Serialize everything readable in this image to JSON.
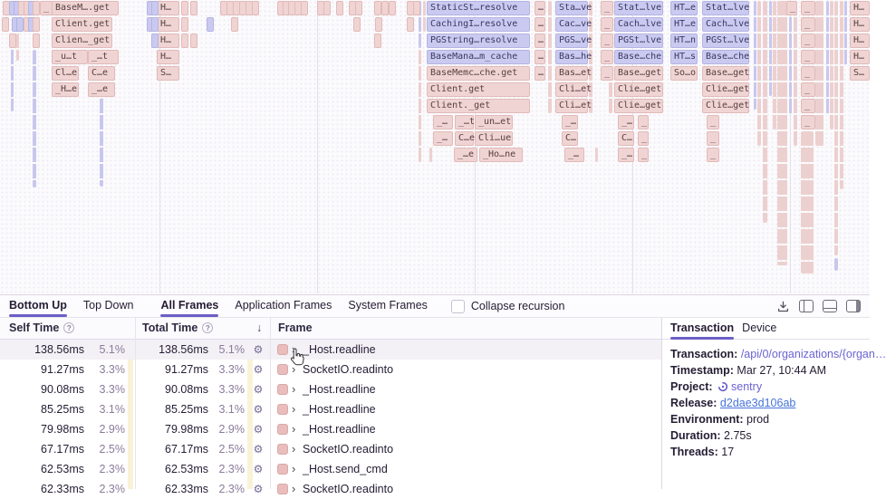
{
  "flame": {
    "gridlines": [
      176,
      350,
      524,
      698,
      872
    ],
    "colors": {
      "pink_bg": "#efd4d3",
      "pink_border": "#e2bab8",
      "blue_bg": "#cacaf1",
      "blue_border": "#b4b4e4"
    },
    "boxes": [
      [
        "_",
        44,
        0,
        12,
        "p"
      ],
      [
        "BaseM….get",
        57,
        0,
        72,
        "p"
      ],
      [
        "Client.get",
        57,
        1,
        65,
        "p"
      ],
      [
        "Clien…_get",
        57,
        2,
        65,
        "p"
      ],
      [
        "_u…t",
        57,
        3,
        38,
        "p"
      ],
      [
        "_…t",
        97,
        3,
        32,
        "p"
      ],
      [
        "Cl…e",
        57,
        4,
        28,
        "p"
      ],
      [
        "C…e",
        97,
        4,
        28,
        "p"
      ],
      [
        "_H…e",
        57,
        5,
        28,
        "p"
      ],
      [
        "_…e",
        97,
        5,
        28,
        "p"
      ],
      [
        "",
        3,
        0,
        4,
        "p"
      ],
      [
        "",
        10,
        0,
        3,
        "b"
      ],
      [
        "",
        15,
        0,
        3,
        "b"
      ],
      [
        "",
        20,
        0,
        4,
        "p"
      ],
      [
        "",
        26,
        0,
        3,
        "p"
      ],
      [
        "",
        31,
        0,
        3,
        "b"
      ],
      [
        "",
        36,
        0,
        5,
        "p"
      ],
      [
        "",
        13,
        1,
        3,
        "b"
      ],
      [
        "",
        18,
        1,
        3,
        "b"
      ],
      [
        "",
        26,
        1,
        3,
        "p"
      ],
      [
        "",
        31,
        1,
        3,
        "b"
      ],
      [
        "",
        36,
        1,
        5,
        "p"
      ],
      [
        "",
        10,
        2,
        3,
        "p"
      ],
      [
        "",
        36,
        2,
        5,
        "p"
      ],
      [
        "",
        2,
        1,
        3,
        "p"
      ],
      [
        "H…",
        173,
        0,
        23,
        "p"
      ],
      [
        "H…",
        173,
        1,
        23,
        "p"
      ],
      [
        "H…",
        173,
        2,
        23,
        "p"
      ],
      [
        "H…",
        173,
        3,
        23,
        "p"
      ],
      [
        "S…",
        173,
        4,
        23,
        "p"
      ],
      [
        "",
        162,
        0,
        3,
        "b"
      ],
      [
        "",
        167,
        0,
        3,
        "b"
      ],
      [
        "",
        162,
        1,
        3,
        "b"
      ],
      [
        "",
        167,
        1,
        3,
        "b"
      ],
      [
        "",
        167,
        2,
        3,
        "b"
      ],
      [
        "",
        200,
        0,
        6,
        "p"
      ],
      [
        "",
        200,
        1,
        6,
        "p"
      ],
      [
        "",
        200,
        2,
        6,
        "p"
      ],
      [
        "",
        210,
        0,
        4,
        "p"
      ],
      [
        "",
        210,
        2,
        4,
        "p"
      ],
      [
        "",
        228,
        1,
        4,
        "b"
      ],
      [
        "",
        243,
        0,
        4,
        "p"
      ],
      [
        "",
        250,
        0,
        4,
        "p"
      ],
      [
        "",
        257,
        0,
        4,
        "p"
      ],
      [
        "",
        264,
        0,
        4,
        "p"
      ],
      [
        "",
        271,
        0,
        4,
        "p"
      ],
      [
        "",
        278,
        0,
        4,
        "p"
      ],
      [
        "",
        306,
        0,
        4,
        "p"
      ],
      [
        "",
        312,
        0,
        4,
        "p"
      ],
      [
        "",
        318,
        0,
        4,
        "p"
      ],
      [
        "",
        325,
        0,
        4,
        "p"
      ],
      [
        "",
        332,
        0,
        4,
        "p"
      ],
      [
        "",
        350,
        0,
        4,
        "p"
      ],
      [
        "",
        357,
        0,
        4,
        "p"
      ],
      [
        "",
        371,
        0,
        4,
        "p"
      ],
      [
        "",
        385,
        0,
        4,
        "p"
      ],
      [
        "",
        392,
        0,
        4,
        "p"
      ],
      [
        "",
        413,
        0,
        4,
        "p"
      ],
      [
        "",
        421,
        0,
        4,
        "p"
      ],
      [
        "",
        429,
        0,
        4,
        "p"
      ],
      [
        "",
        449,
        0,
        4,
        "p"
      ],
      [
        "",
        456,
        0,
        4,
        "p"
      ],
      [
        "",
        255,
        1,
        4,
        "p"
      ],
      [
        "",
        390,
        1,
        5,
        "p"
      ],
      [
        "",
        414,
        1,
        4,
        "p"
      ],
      [
        "",
        449,
        1,
        4,
        "p"
      ],
      [
        "",
        413,
        2,
        4,
        "p"
      ],
      [
        "StaticSt…resolve",
        471,
        0,
        112,
        "b"
      ],
      [
        "CachingI…resolve",
        471,
        1,
        112,
        "b"
      ],
      [
        "PGString…resolve",
        471,
        2,
        112,
        "b"
      ],
      [
        "BaseMana…m_cache",
        471,
        3,
        112,
        "b"
      ],
      [
        "BaseMemc…che.get",
        471,
        4,
        112,
        "p"
      ],
      [
        "Client.get",
        471,
        5,
        112,
        "p"
      ],
      [
        "Client._get",
        471,
        6,
        112,
        "p"
      ],
      [
        "_…",
        478,
        7,
        20,
        "p"
      ],
      [
        "_…t",
        502,
        7,
        19,
        "p"
      ],
      [
        "_un…et",
        524,
        7,
        40,
        "p"
      ],
      [
        "_…",
        478,
        8,
        20,
        "p"
      ],
      [
        "C…e",
        502,
        8,
        19,
        "p"
      ],
      [
        "Cli…ue",
        524,
        8,
        40,
        "p"
      ],
      [
        "_…e",
        501,
        9,
        24,
        "p"
      ],
      [
        "_Ho…ne",
        529,
        9,
        46,
        "p"
      ],
      [
        "…",
        590,
        0,
        10,
        "p"
      ],
      [
        "…",
        590,
        1,
        10,
        "p"
      ],
      [
        "…",
        590,
        2,
        10,
        "p"
      ],
      [
        "…",
        590,
        3,
        10,
        "p"
      ],
      [
        "…",
        590,
        4,
        10,
        "p"
      ],
      [
        "Sta…ve",
        613,
        0,
        34,
        "b"
      ],
      [
        "Cac…ve",
        613,
        1,
        34,
        "b"
      ],
      [
        "PGS…ve",
        613,
        2,
        34,
        "b"
      ],
      [
        "Bas…he",
        613,
        3,
        34,
        "b"
      ],
      [
        "Bas…et",
        613,
        4,
        34,
        "p"
      ],
      [
        "Cli…et",
        613,
        5,
        34,
        "p"
      ],
      [
        "Cli…et",
        613,
        6,
        34,
        "p"
      ],
      [
        "_…",
        620,
        7,
        16,
        "p"
      ],
      [
        "C…",
        620,
        8,
        16,
        "p"
      ],
      [
        "_…",
        623,
        9,
        20,
        "p"
      ],
      [
        "_",
        663,
        0,
        12,
        "p"
      ],
      [
        "_",
        663,
        1,
        12,
        "p"
      ],
      [
        "_",
        663,
        2,
        12,
        "p"
      ],
      [
        "_",
        663,
        3,
        12,
        "p"
      ],
      [
        "_",
        663,
        4,
        12,
        "p"
      ],
      [
        "Stat…lve",
        678,
        0,
        52,
        "b"
      ],
      [
        "Cach…lve",
        678,
        1,
        52,
        "b"
      ],
      [
        "PGSt…lve",
        678,
        2,
        52,
        "b"
      ],
      [
        "Base…che",
        678,
        3,
        52,
        "b"
      ],
      [
        "Base…get",
        678,
        4,
        52,
        "p"
      ],
      [
        "Clie…get",
        678,
        5,
        52,
        "p"
      ],
      [
        "Clie…get",
        678,
        6,
        52,
        "p"
      ],
      [
        "_…",
        682,
        7,
        16,
        "p"
      ],
      [
        "_",
        704,
        7,
        10,
        "p"
      ],
      [
        "C…",
        682,
        8,
        16,
        "p"
      ],
      [
        "_",
        704,
        8,
        10,
        "p"
      ],
      [
        "_…",
        682,
        9,
        16,
        "p"
      ],
      [
        "_",
        704,
        9,
        10,
        "p"
      ],
      [
        "HT…e",
        740,
        0,
        28,
        "b"
      ],
      [
        "HT…e",
        740,
        1,
        28,
        "b"
      ],
      [
        "HT…n",
        740,
        2,
        28,
        "b"
      ],
      [
        "HT…s",
        740,
        3,
        28,
        "b"
      ],
      [
        "So…o",
        740,
        4,
        28,
        "p"
      ],
      [
        "Stat…lve",
        775,
        0,
        50,
        "b"
      ],
      [
        "Cach…lve",
        775,
        1,
        50,
        "b"
      ],
      [
        "PGSt…lve",
        775,
        2,
        50,
        "b"
      ],
      [
        "Base…che",
        775,
        3,
        50,
        "b"
      ],
      [
        "Base…get",
        775,
        4,
        50,
        "p"
      ],
      [
        "Clie…get",
        775,
        5,
        50,
        "p"
      ],
      [
        "Clie…get",
        775,
        6,
        50,
        "p"
      ],
      [
        "_",
        780,
        7,
        12,
        "p"
      ],
      [
        "_",
        780,
        8,
        12,
        "p"
      ],
      [
        "_",
        780,
        9,
        12,
        "p"
      ],
      [
        "_",
        868,
        0,
        10,
        "p"
      ],
      [
        "_",
        884,
        0,
        14,
        "p"
      ],
      [
        "_",
        884,
        1,
        14,
        "p"
      ],
      [
        "_",
        884,
        2,
        14,
        "p"
      ],
      [
        "_",
        884,
        3,
        14,
        "p"
      ],
      [
        "_",
        884,
        4,
        14,
        "p"
      ],
      [
        "_",
        884,
        5,
        14,
        "p"
      ],
      [
        "_",
        884,
        6,
        14,
        "p"
      ],
      [
        "_",
        884,
        7,
        14,
        "p"
      ],
      [
        "H…",
        938,
        0,
        20,
        "p"
      ],
      [
        "H…",
        938,
        1,
        20,
        "p"
      ],
      [
        "H…",
        938,
        2,
        20,
        "p"
      ],
      [
        "H…",
        938,
        3,
        20,
        "p"
      ],
      [
        "S…",
        938,
        4,
        20,
        "p"
      ]
    ],
    "columns": [
      [
        12,
        37,
        3,
        86,
        "b"
      ],
      [
        36,
        55,
        4,
        152,
        "b"
      ],
      [
        110,
        73,
        4,
        133,
        "b"
      ],
      [
        18,
        37,
        3,
        30,
        "p"
      ],
      [
        462,
        1,
        3,
        52,
        "b"
      ],
      [
        462,
        55,
        3,
        124,
        "p"
      ],
      [
        467,
        1,
        3,
        34,
        "p"
      ],
      [
        474,
        163,
        3,
        16,
        "p"
      ],
      [
        605,
        1,
        4,
        124,
        "p"
      ],
      [
        650,
        1,
        4,
        124,
        "p"
      ],
      [
        657,
        163,
        3,
        16,
        "p"
      ],
      [
        672,
        1,
        4,
        124,
        "p"
      ],
      [
        832,
        1,
        3,
        120,
        "b"
      ],
      [
        836,
        1,
        4,
        160,
        "p"
      ],
      [
        842,
        1,
        5,
        245,
        "p"
      ],
      [
        849,
        1,
        3,
        105,
        "b"
      ],
      [
        853,
        1,
        4,
        142,
        "p"
      ],
      [
        858,
        1,
        11,
        292,
        "p"
      ],
      [
        871,
        1,
        3,
        125,
        "b"
      ],
      [
        876,
        1,
        4,
        160,
        "p"
      ],
      [
        884,
        145,
        14,
        157,
        "p"
      ],
      [
        900,
        1,
        9,
        160,
        "p"
      ],
      [
        912,
        1,
        3,
        125,
        "b"
      ],
      [
        916,
        1,
        4,
        142,
        "p"
      ],
      [
        921,
        1,
        4,
        281,
        "p"
      ],
      [
        921,
        285,
        4,
        14,
        "b"
      ],
      [
        927,
        1,
        4,
        208,
        "p"
      ],
      [
        932,
        1,
        3,
        72,
        "b"
      ]
    ]
  },
  "toolbar": {
    "tabs": [
      {
        "label": "Bottom Up",
        "active": true,
        "group": 0
      },
      {
        "label": "Top Down",
        "active": false,
        "group": 0
      },
      {
        "label": "All Frames",
        "active": true,
        "group": 1
      },
      {
        "label": "Application Frames",
        "active": false,
        "group": 1
      },
      {
        "label": "System Frames",
        "active": false,
        "group": 1
      }
    ],
    "checkbox_label": "Collapse recursion",
    "accent_color": "#6c5fc7"
  },
  "table": {
    "headers": {
      "self": "Self Time",
      "total": "Total Time",
      "frame": "Frame",
      "sort_icon": "↓",
      "info_icon": "?"
    },
    "icons": {
      "gear": "⚙",
      "chevron": "›"
    },
    "rows": [
      {
        "self_ms": "138.56ms",
        "self_pct": "5.1%",
        "total_ms": "138.56ms",
        "total_pct": "5.1%",
        "frame": "_Host.readline",
        "highlighted": true
      },
      {
        "self_ms": "91.27ms",
        "self_pct": "3.3%",
        "total_ms": "91.27ms",
        "total_pct": "3.3%",
        "frame": "SocketIO.readinto",
        "highlighted": false
      },
      {
        "self_ms": "90.08ms",
        "self_pct": "3.3%",
        "total_ms": "90.08ms",
        "total_pct": "3.3%",
        "frame": "_Host.readline",
        "highlighted": false
      },
      {
        "self_ms": "85.25ms",
        "self_pct": "3.1%",
        "total_ms": "85.25ms",
        "total_pct": "3.1%",
        "frame": "_Host.readline",
        "highlighted": false
      },
      {
        "self_ms": "79.98ms",
        "self_pct": "2.9%",
        "total_ms": "79.98ms",
        "total_pct": "2.9%",
        "frame": "_Host.readline",
        "highlighted": false
      },
      {
        "self_ms": "67.17ms",
        "self_pct": "2.5%",
        "total_ms": "67.17ms",
        "total_pct": "2.5%",
        "frame": "SocketIO.readinto",
        "highlighted": false
      },
      {
        "self_ms": "62.53ms",
        "self_pct": "2.3%",
        "total_ms": "62.53ms",
        "total_pct": "2.3%",
        "frame": "_Host.send_cmd",
        "highlighted": false
      },
      {
        "self_ms": "62.33ms",
        "self_pct": "2.3%",
        "total_ms": "62.33ms",
        "total_pct": "2.3%",
        "frame": "SocketIO.readinto",
        "highlighted": false
      }
    ]
  },
  "panel": {
    "tabs": [
      {
        "label": "Transaction",
        "active": true
      },
      {
        "label": "Device",
        "active": false
      }
    ],
    "fields": [
      {
        "label": "Transaction",
        "value": "/api/0/organizations/{organ…",
        "style": "link-purple",
        "icon": false
      },
      {
        "label": "Timestamp",
        "value": "Mar 27, 10:44 AM",
        "style": "plain",
        "icon": false
      },
      {
        "label": "Project",
        "value": "sentry",
        "style": "link-purple",
        "icon": true
      },
      {
        "label": "Release",
        "value": "d2dae3d106ab",
        "style": "link-blue",
        "icon": false
      },
      {
        "label": "Environment",
        "value": "prod",
        "style": "plain",
        "icon": false
      },
      {
        "label": "Duration",
        "value": "2.75s",
        "style": "plain",
        "icon": false
      },
      {
        "label": "Threads",
        "value": "17",
        "style": "plain",
        "icon": false
      }
    ]
  }
}
